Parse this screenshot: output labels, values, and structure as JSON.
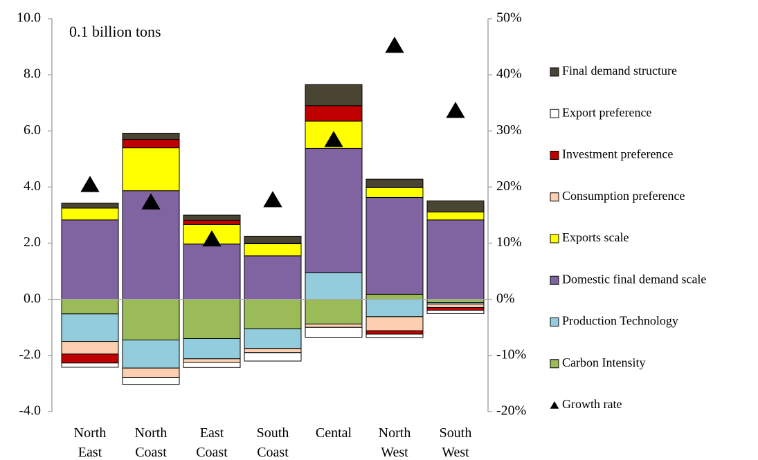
{
  "chart_data": {
    "type": "bar",
    "stacked": true,
    "annotation": "0.1 billion tons",
    "categories": [
      "North East",
      "North Coast",
      "East Coast",
      "South Coast",
      "Cental",
      "North West",
      "South West"
    ],
    "ylim": [
      -4,
      10
    ],
    "yticks": [
      {
        "value": -4,
        "label": "-4.0"
      },
      {
        "value": -2,
        "label": "-2.0"
      },
      {
        "value": 0,
        "label": "0.0"
      },
      {
        "value": 2,
        "label": "2.0"
      },
      {
        "value": 4,
        "label": "4.0"
      },
      {
        "value": 6,
        "label": "6.0"
      },
      {
        "value": 8,
        "label": "8.0"
      },
      {
        "value": 10,
        "label": "10.0"
      }
    ],
    "y2lim": [
      -20,
      50
    ],
    "y2ticks": [
      {
        "value": -20,
        "label": "-20%"
      },
      {
        "value": -10,
        "label": "-10%"
      },
      {
        "value": 0,
        "label": "0%"
      },
      {
        "value": 10,
        "label": "10%"
      },
      {
        "value": 20,
        "label": "20%"
      },
      {
        "value": 30,
        "label": "30%"
      },
      {
        "value": 40,
        "label": "40%"
      },
      {
        "value": 50,
        "label": "50%"
      }
    ],
    "legend": "right",
    "series": [
      {
        "name": "Carbon Intensity",
        "color": "#9bbb59",
        "values": [
          -0.52,
          -1.45,
          -1.4,
          -1.05,
          -0.88,
          0.18,
          -0.12
        ]
      },
      {
        "name": "Production Technology",
        "color": "#93cddd",
        "values": [
          -0.98,
          -1.0,
          -0.72,
          -0.7,
          0.95,
          -0.62,
          -0.05
        ]
      },
      {
        "name": "Domestic final demand scale",
        "color": "#8064a2",
        "values": [
          2.83,
          3.87,
          1.97,
          1.55,
          4.43,
          3.45,
          2.83
        ]
      },
      {
        "name": "Exports scale",
        "color": "#ffff00",
        "values": [
          0.42,
          1.53,
          0.7,
          0.43,
          0.97,
          0.35,
          0.28
        ]
      },
      {
        "name": "Consumption preference",
        "color": "#fbcfb0",
        "values": [
          -0.45,
          -0.33,
          -0.13,
          -0.15,
          -0.12,
          -0.5,
          -0.12
        ]
      },
      {
        "name": "Investment preference",
        "color": "#c00000",
        "values": [
          -0.32,
          0.3,
          0.15,
          0.02,
          0.55,
          -0.12,
          -0.1
        ]
      },
      {
        "name": "Export preference",
        "color": "#ffffff",
        "values": [
          -0.15,
          -0.25,
          -0.18,
          -0.3,
          -0.35,
          -0.12,
          -0.12
        ]
      },
      {
        "name": "Final demand structure",
        "color": "#4a4433",
        "values": [
          0.18,
          0.22,
          0.18,
          0.25,
          0.75,
          0.3,
          0.4
        ]
      },
      {
        "name": "Growth rate",
        "color": "#000000",
        "type": "triangle",
        "axis": "y2",
        "values": [
          20.4,
          17.3,
          10.7,
          17.7,
          28.4,
          45.2,
          33.6
        ]
      }
    ]
  }
}
